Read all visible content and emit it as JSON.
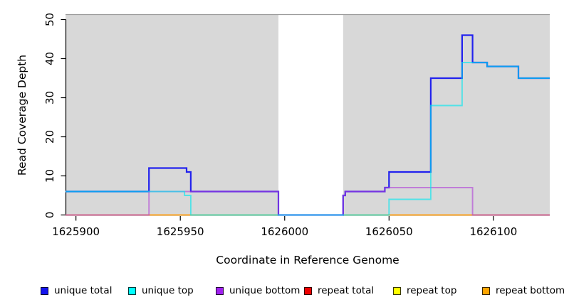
{
  "figure": {
    "x_axis": {
      "label": "Coordinate in Reference Genome",
      "tick_labels": [
        "1625900",
        "1625950",
        "1626000",
        "1626050",
        "1626100"
      ],
      "tick_values": [
        1625900,
        1625950,
        1626000,
        1626050,
        1626100
      ]
    },
    "y_axis": {
      "label": "Read Coverage Depth",
      "tick_labels": [
        "0",
        "10",
        "20",
        "30",
        "40",
        "50"
      ],
      "tick_values": [
        0,
        10,
        20,
        30,
        40,
        50
      ]
    }
  },
  "chart_data": {
    "type": "step-line",
    "title": "",
    "xlabel": "Coordinate in Reference Genome",
    "ylabel": "Read Coverage Depth",
    "x_ticks": [
      1625900,
      1625950,
      1626000,
      1626050,
      1626100
    ],
    "y_ticks": [
      0,
      10,
      20,
      30,
      40,
      50
    ],
    "x_range": [
      1625895,
      1626127
    ],
    "y_range": [
      0,
      51.4
    ],
    "plot_background": "#d8d8d8",
    "border_color": "#9a9a9a",
    "gap_region": {
      "x_start": 1625997,
      "x_end": 1626028,
      "color": "#ffffff"
    },
    "series": [
      {
        "name": "repeat total",
        "line_color": "#e8262d",
        "points": [
          [
            1625895,
            0
          ],
          [
            1626127,
            0
          ]
        ]
      },
      {
        "name": "repeat top",
        "line_color": "#ffe400",
        "points": [
          [
            1625895,
            0
          ],
          [
            1626127,
            0
          ]
        ]
      },
      {
        "name": "repeat bottom",
        "line_color": "#ff9e1b",
        "points": [
          [
            1625895,
            0
          ],
          [
            1626127,
            0
          ]
        ]
      },
      {
        "name": "unique total",
        "line_color": "#2222ee",
        "points": [
          [
            1625895,
            6
          ],
          [
            1625935,
            12
          ],
          [
            1625953,
            11
          ],
          [
            1625955,
            6
          ],
          [
            1625997,
            0
          ],
          [
            1626028,
            5
          ],
          [
            1626029,
            6
          ],
          [
            1626048,
            7
          ],
          [
            1626050,
            11
          ],
          [
            1626070,
            35
          ],
          [
            1626085,
            46
          ],
          [
            1626090,
            39
          ],
          [
            1626097,
            38
          ],
          [
            1626112,
            35
          ],
          [
            1626127,
            35
          ]
        ]
      },
      {
        "name": "unique bottom",
        "line_color": "#b040d8",
        "points": [
          [
            1625895,
            0
          ],
          [
            1625935,
            6
          ],
          [
            1625997,
            0
          ],
          [
            1626028,
            5
          ],
          [
            1626029,
            6
          ],
          [
            1626048,
            7
          ],
          [
            1626090,
            0
          ],
          [
            1626127,
            0
          ]
        ]
      },
      {
        "name": "unique top",
        "line_color": "#00e8f0",
        "points": [
          [
            1625895,
            6
          ],
          [
            1625952,
            5
          ],
          [
            1625955,
            0
          ],
          [
            1626050,
            4
          ],
          [
            1626070,
            28
          ],
          [
            1626085,
            39
          ],
          [
            1626097,
            38
          ],
          [
            1626112,
            35
          ],
          [
            1626127,
            35
          ]
        ]
      }
    ]
  },
  "legend": {
    "items": [
      {
        "label": "unique total",
        "color": "#1414ee"
      },
      {
        "label": "unique top",
        "color": "#00ffff"
      },
      {
        "label": "unique bottom",
        "color": "#a020f0"
      },
      {
        "label": "repeat total",
        "color": "#ee0000"
      },
      {
        "label": "repeat top",
        "color": "#ffff00"
      },
      {
        "label": "repeat bottom",
        "color": "#ffa500"
      }
    ]
  }
}
